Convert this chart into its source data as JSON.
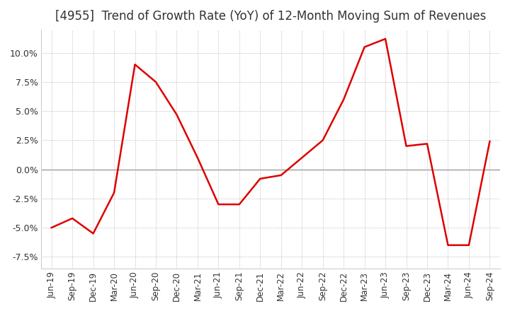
{
  "title": "[4955]  Trend of Growth Rate (YoY) of 12-Month Moving Sum of Revenues",
  "title_fontsize": 12,
  "line_color": "#dd0000",
  "background_color": "#ffffff",
  "plot_bg_color": "#ffffff",
  "grid_color": "#aaaaaa",
  "zero_line_color": "#888888",
  "ylim": [
    -0.085,
    0.12
  ],
  "yticks": [
    -0.075,
    -0.05,
    -0.025,
    0.0,
    0.025,
    0.05,
    0.075,
    0.1
  ],
  "x_labels": [
    "Jun-19",
    "Sep-19",
    "Dec-19",
    "Mar-20",
    "Jun-20",
    "Sep-20",
    "Dec-20",
    "Mar-21",
    "Jun-21",
    "Sep-21",
    "Dec-21",
    "Mar-22",
    "Jun-22",
    "Sep-22",
    "Dec-22",
    "Mar-23",
    "Jun-23",
    "Sep-23",
    "Dec-23",
    "Mar-24",
    "Jun-24",
    "Sep-24"
  ],
  "y_values": [
    -0.05,
    -0.042,
    -0.055,
    -0.02,
    0.09,
    0.075,
    0.047,
    0.01,
    -0.03,
    -0.03,
    -0.008,
    -0.005,
    0.01,
    0.025,
    0.06,
    0.105,
    0.112,
    0.02,
    0.022,
    -0.065,
    -0.065,
    0.024
  ]
}
